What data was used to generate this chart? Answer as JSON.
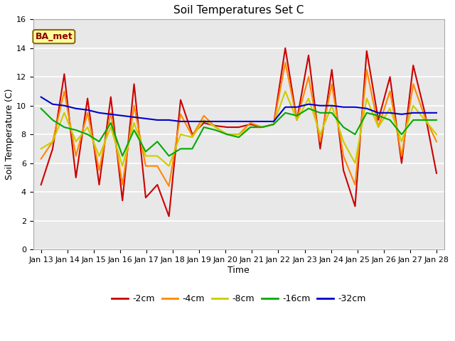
{
  "title": "Soil Temperatures Set C",
  "xlabel": "Time",
  "ylabel": "Soil Temperature (C)",
  "ylim": [
    0,
    16
  ],
  "yticks": [
    0,
    2,
    4,
    6,
    8,
    10,
    12,
    14,
    16
  ],
  "annotation": "BA_met",
  "legend_labels": [
    "-2cm",
    "-4cm",
    "-8cm",
    "-16cm",
    "-32cm"
  ],
  "legend_colors": [
    "#cc0000",
    "#ff8800",
    "#cccc00",
    "#00aa00",
    "#0000cc"
  ],
  "x_labels": [
    "Jan 13",
    "Jan 14",
    "Jan 15",
    "Jan 16",
    "Jan 17",
    "Jan 18",
    "Jan 19",
    "Jan 20",
    "Jan 21",
    "Jan 22",
    "Jan 23",
    "Jan 24",
    "Jan 25",
    "Jan 26",
    "Jan 27",
    "Jan 28"
  ],
  "series": {
    "neg2cm": [
      4.5,
      7.0,
      12.2,
      5.0,
      10.5,
      4.5,
      10.6,
      3.4,
      11.5,
      3.6,
      4.5,
      2.3,
      10.4,
      8.0,
      8.8,
      8.6,
      8.5,
      8.5,
      8.7,
      8.5,
      8.7,
      14.0,
      9.0,
      13.5,
      7.0,
      12.5,
      5.5,
      3.0,
      13.8,
      9.0,
      12.0,
      6.0,
      12.8,
      9.5,
      5.3
    ],
    "neg4cm": [
      6.3,
      7.5,
      11.0,
      6.5,
      9.5,
      5.5,
      9.5,
      4.5,
      10.0,
      5.8,
      5.8,
      4.4,
      9.4,
      7.9,
      9.3,
      8.5,
      8.0,
      8.0,
      8.8,
      8.5,
      8.7,
      13.0,
      9.0,
      12.0,
      7.5,
      11.5,
      6.5,
      4.5,
      12.5,
      8.5,
      11.0,
      6.5,
      11.5,
      9.2,
      7.5
    ],
    "neg8cm": [
      7.0,
      7.5,
      9.5,
      7.5,
      8.5,
      6.5,
      8.5,
      5.8,
      8.8,
      6.5,
      6.5,
      5.8,
      8.0,
      7.8,
      9.0,
      8.5,
      8.0,
      8.0,
      8.5,
      8.5,
      8.7,
      11.0,
      9.0,
      10.5,
      8.0,
      10.0,
      7.5,
      6.0,
      10.5,
      8.5,
      9.8,
      7.5,
      10.0,
      9.0,
      8.0
    ],
    "neg16cm": [
      9.8,
      9.0,
      8.5,
      8.3,
      8.0,
      7.5,
      8.8,
      6.5,
      8.3,
      6.8,
      7.5,
      6.5,
      7.0,
      7.0,
      8.5,
      8.3,
      8.0,
      7.8,
      8.5,
      8.5,
      8.7,
      9.5,
      9.3,
      9.8,
      9.5,
      9.5,
      8.5,
      8.0,
      9.5,
      9.3,
      9.0,
      8.0,
      9.0,
      9.0,
      9.0
    ],
    "neg32cm": [
      10.6,
      10.1,
      10.0,
      9.8,
      9.7,
      9.5,
      9.4,
      9.3,
      9.2,
      9.1,
      9.0,
      9.0,
      8.9,
      8.9,
      8.9,
      8.9,
      8.9,
      8.9,
      8.9,
      8.9,
      8.9,
      9.9,
      9.9,
      10.1,
      10.0,
      10.0,
      9.9,
      9.9,
      9.8,
      9.5,
      9.5,
      9.4,
      9.5,
      9.5,
      9.5
    ]
  },
  "figsize": [
    6.4,
    4.8
  ],
  "dpi": 100,
  "fig_facecolor": "#ffffff",
  "ax_facecolor": "#e8e8e8",
  "grid_color": "#ffffff",
  "title_fontsize": 11,
  "axis_label_fontsize": 9,
  "tick_fontsize": 8,
  "annotation_fontsize": 9,
  "legend_fontsize": 9,
  "linewidth": 1.5
}
